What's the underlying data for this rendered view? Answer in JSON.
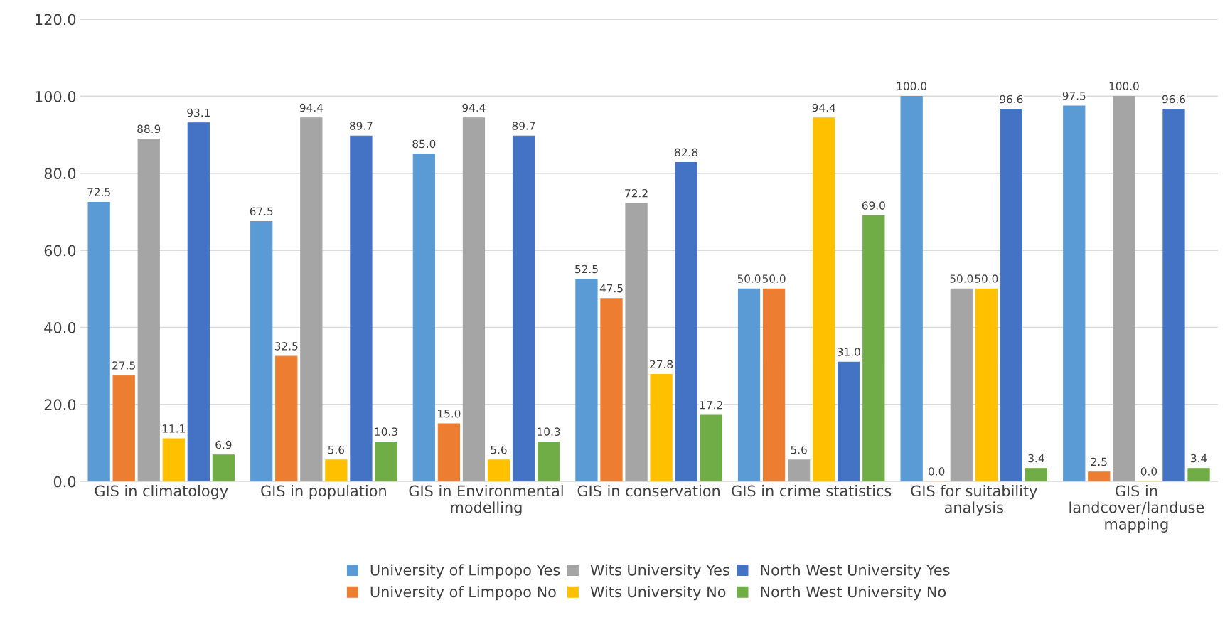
{
  "chart_data": {
    "type": "bar",
    "categories": [
      "GIS in climatology",
      "GIS in population",
      "GIS in Environmental\nmodelling",
      "GIS in conservation",
      "GIS in crime statistics",
      "GIS for suitability\nanalysis",
      "GIS in\nlandcover/landuse\nmapping"
    ],
    "series": [
      {
        "name": "University of Limpopo Yes",
        "color": "#5b9bd5",
        "values": [
          72.5,
          67.5,
          85.0,
          52.5,
          50.0,
          100.0,
          97.5
        ],
        "value_labels": [
          "72.5",
          "67.5",
          "85.0",
          "52.5",
          "50.0",
          "100.0",
          "97.5"
        ]
      },
      {
        "name": "University of Limpopo No",
        "color": "#ed7d31",
        "values": [
          27.5,
          32.5,
          15.0,
          47.5,
          50.0,
          0.0,
          2.5
        ],
        "value_labels": [
          "27.5",
          "32.5",
          "15.0",
          "47.5",
          "50.0",
          "0.0",
          "2.5"
        ]
      },
      {
        "name": "Wits University Yes",
        "color": "#a5a5a5",
        "values": [
          88.9,
          94.4,
          94.4,
          72.2,
          5.6,
          50.0,
          100.0
        ],
        "value_labels": [
          "88.9",
          "94.4",
          "94.4",
          "72.2",
          "5.6",
          "50.0",
          "100.0"
        ]
      },
      {
        "name": "Wits University No",
        "color": "#ffc000",
        "values": [
          11.1,
          5.6,
          5.6,
          27.8,
          94.4,
          50.0,
          0.0
        ],
        "value_labels": [
          "11.1",
          "5.6",
          "5.6",
          "27.8",
          "94.4",
          "50.0",
          "0.0"
        ]
      },
      {
        "name": "North West University Yes",
        "color": "#4472c4",
        "values": [
          93.1,
          89.7,
          89.7,
          82.8,
          31.0,
          96.6,
          96.6
        ],
        "value_labels": [
          "93.1",
          "89.7",
          "89.7",
          "82.8",
          "31.0",
          "96.6",
          "96.6"
        ]
      },
      {
        "name": "North West University No",
        "color": "#70ad47",
        "values": [
          6.9,
          10.3,
          10.3,
          17.2,
          69.0,
          3.4,
          3.4
        ],
        "value_labels": [
          "6.9",
          "10.3",
          "10.3",
          "17.2",
          "69.0",
          "3.4",
          "3.4"
        ]
      }
    ],
    "ylim": [
      0,
      120
    ],
    "yticks": [
      {
        "value": 0,
        "label": "0.0"
      },
      {
        "value": 20,
        "label": "20.0"
      },
      {
        "value": 40,
        "label": "40.0"
      },
      {
        "value": 60,
        "label": "60.0"
      },
      {
        "value": 80,
        "label": "80.0"
      },
      {
        "value": 100,
        "label": "100.0"
      },
      {
        "value": 120,
        "label": "120.0"
      }
    ],
    "grid": "y",
    "legend": "bottom"
  }
}
